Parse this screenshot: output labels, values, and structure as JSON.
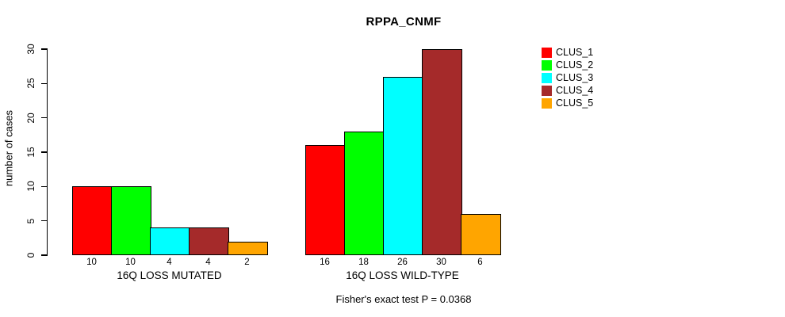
{
  "title": "RPPA_CNMF",
  "chart_data": {
    "type": "bar",
    "title": "RPPA_CNMF",
    "ylabel": "number of cases",
    "xlabel": "",
    "ylim": [
      0,
      30
    ],
    "yticks": [
      0,
      5,
      10,
      15,
      20,
      25,
      30
    ],
    "grid": false,
    "legend_position": "topright",
    "series": [
      {
        "name": "CLUS_1",
        "color": "#ff0000"
      },
      {
        "name": "CLUS_2",
        "color": "#00ff00"
      },
      {
        "name": "CLUS_3",
        "color": "#00ffff"
      },
      {
        "name": "CLUS_4",
        "color": "#a52a2a"
      },
      {
        "name": "CLUS_5",
        "color": "#ffa500"
      }
    ],
    "groups": [
      {
        "label": "16Q LOSS MUTATED",
        "values": [
          10,
          10,
          4,
          4,
          2
        ]
      },
      {
        "label": "16Q LOSS WILD-TYPE",
        "values": [
          16,
          18,
          26,
          30,
          6
        ]
      }
    ],
    "bar_value_labels_visible": true,
    "annotation": "Fisher's exact test P = 0.0368",
    "axis_color": "#000000",
    "text_color": "#000000",
    "background_color": "#ffffff"
  }
}
